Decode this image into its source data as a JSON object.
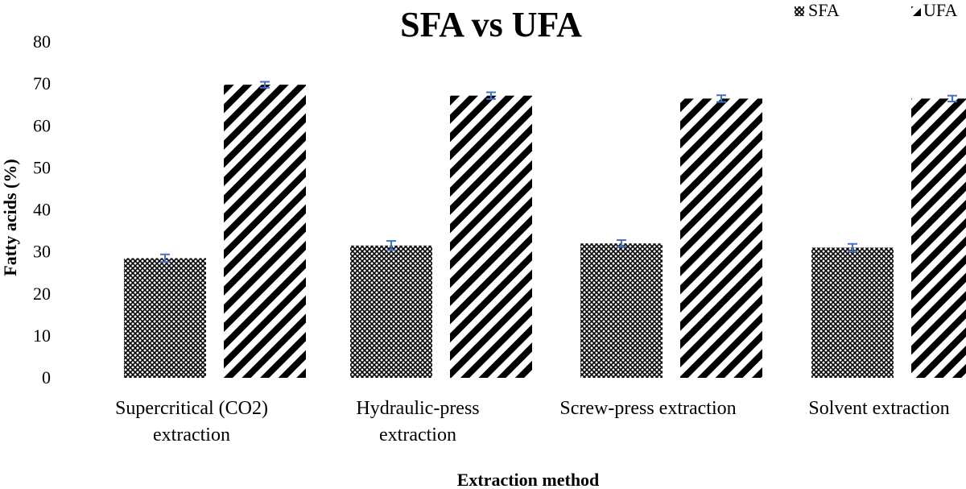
{
  "chart_data": {
    "type": "bar",
    "title": "SFA vs UFA",
    "xlabel": "Extraction method",
    "ylabel": "Fatty acids (%)",
    "ylim": [
      0,
      80
    ],
    "yticks": [
      0,
      10,
      20,
      30,
      40,
      50,
      60,
      70,
      80
    ],
    "grid": false,
    "legend_position": "top-right",
    "categories": [
      [
        "Supercritical (CO2)",
        "extraction"
      ],
      [
        "Hydraulic-press",
        "extraction"
      ],
      [
        "Screw-press extraction"
      ],
      [
        "Solvent extraction"
      ]
    ],
    "series": [
      {
        "name": "SFA",
        "pattern": "crosshatch",
        "values": [
          28.5,
          31.5,
          32.0,
          31.0
        ],
        "errors": [
          0.9,
          1.1,
          0.8,
          0.9
        ]
      },
      {
        "name": "UFA",
        "pattern": "diagonal-stripes",
        "values": [
          69.8,
          67.2,
          66.5,
          66.5
        ],
        "errors": [
          0.7,
          0.8,
          0.8,
          0.7
        ]
      }
    ],
    "colors": {
      "bar_pattern": "#000000",
      "bar_background": "#ffffff",
      "error_bar": "#4472c4"
    }
  }
}
